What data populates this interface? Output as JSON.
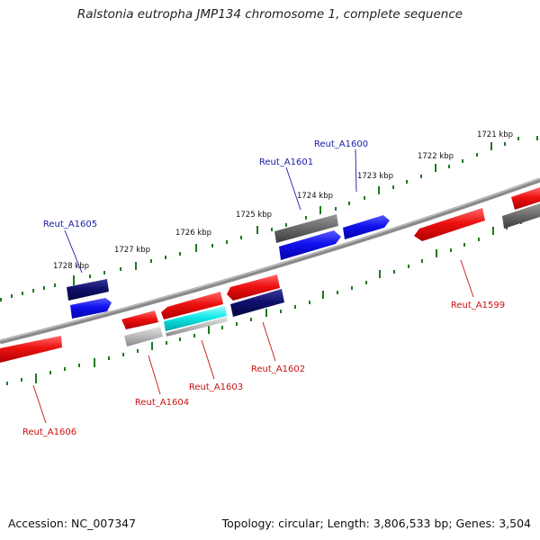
{
  "title": "Ralstonia eutropha JMP134 chromosome 1, complete sequence",
  "footer": {
    "accession": "Accession: NC_007347",
    "summary": "Topology: circular; Length: 3,806,533 bp; Genes: 3,504"
  },
  "colors": {
    "backbone": "#808080",
    "tick": "#1f7a1f",
    "forward_gene": "#ee1111",
    "reverse_gene": "#1111ee",
    "dark_gene": "#10106e",
    "gray_gene": "#6c6c6c",
    "light_gray_gene": "#bcbcbc",
    "cyan_gene": "#11e8e8",
    "label_blue": "#1a1aa6",
    "label_red": "#c81010"
  },
  "kbp_labels": [
    "1721 kbp",
    "1722 kbp",
    "1723 kbp",
    "1724 kbp",
    "1725 kbp",
    "1726 kbp",
    "1727 kbp",
    "1728 kbp"
  ],
  "gene_labels": {
    "top": [
      "Reut_A1600",
      "Reut_A1601",
      "Reut_A1605"
    ],
    "bottom": [
      "Reut_A1599",
      "Reut_A1602",
      "Reut_A1603",
      "Reut_A1604",
      "Reut_A1606"
    ]
  }
}
